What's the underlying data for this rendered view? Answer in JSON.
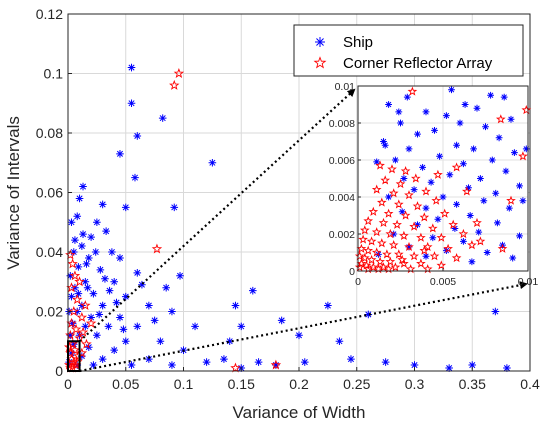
{
  "chart_data": {
    "type": "scatter",
    "title": "",
    "xlabel": "Variance of Width",
    "ylabel": "Variance of Intervals",
    "xlim": [
      0,
      0.4
    ],
    "ylim": [
      0,
      0.12
    ],
    "x_ticks": [
      "0",
      "0.05",
      "0.1",
      "0.15",
      "0.2",
      "0.25",
      "0.3",
      "0.35",
      "0.4"
    ],
    "y_ticks": [
      "0",
      "0.02",
      "0.04",
      "0.06",
      "0.08",
      "0.1",
      "0.12"
    ],
    "grid": true,
    "legend": "top-right",
    "series": [
      {
        "name": "Ship",
        "marker": "asterisk",
        "color": "#0000ff",
        "points": [
          [
            0.055,
            0.102
          ],
          [
            0.055,
            0.09
          ],
          [
            0.06,
            0.079
          ],
          [
            0.058,
            0.065
          ],
          [
            0.082,
            0.085
          ],
          [
            0.045,
            0.073
          ],
          [
            0.125,
            0.07
          ],
          [
            0.013,
            0.062
          ],
          [
            0.092,
            0.055
          ],
          [
            0.05,
            0.055
          ],
          [
            0.01,
            0.058
          ],
          [
            0.03,
            0.056
          ],
          [
            0.008,
            0.052
          ],
          [
            0.025,
            0.05
          ],
          [
            0.003,
            0.05
          ],
          [
            0.02,
            0.045
          ],
          [
            0.033,
            0.047
          ],
          [
            0.012,
            0.042
          ],
          [
            0.038,
            0.04
          ],
          [
            0.005,
            0.04
          ],
          [
            0.018,
            0.038
          ],
          [
            0.045,
            0.038
          ],
          [
            0.009,
            0.035
          ],
          [
            0.028,
            0.034
          ],
          [
            0.06,
            0.033
          ],
          [
            0.002,
            0.032
          ],
          [
            0.015,
            0.03
          ],
          [
            0.04,
            0.03
          ],
          [
            0.006,
            0.028
          ],
          [
            0.022,
            0.026
          ],
          [
            0.05,
            0.025
          ],
          [
            0.003,
            0.025
          ],
          [
            0.012,
            0.022
          ],
          [
            0.03,
            0.022
          ],
          [
            0.07,
            0.022
          ],
          [
            0.001,
            0.02
          ],
          [
            0.008,
            0.02
          ],
          [
            0.02,
            0.018
          ],
          [
            0.045,
            0.018
          ],
          [
            0.09,
            0.02
          ],
          [
            0.004,
            0.016
          ],
          [
            0.015,
            0.015
          ],
          [
            0.035,
            0.015
          ],
          [
            0.06,
            0.015
          ],
          [
            0.11,
            0.015
          ],
          [
            0.002,
            0.012
          ],
          [
            0.01,
            0.012
          ],
          [
            0.025,
            0.012
          ],
          [
            0.05,
            0.01
          ],
          [
            0.08,
            0.01
          ],
          [
            0.005,
            0.009
          ],
          [
            0.018,
            0.008
          ],
          [
            0.04,
            0.007
          ],
          [
            0.1,
            0.007
          ],
          [
            0.14,
            0.01
          ],
          [
            0.003,
            0.006
          ],
          [
            0.012,
            0.005
          ],
          [
            0.03,
            0.004
          ],
          [
            0.07,
            0.004
          ],
          [
            0.12,
            0.003
          ],
          [
            0.001,
            0.003
          ],
          [
            0.008,
            0.002
          ],
          [
            0.022,
            0.002
          ],
          [
            0.055,
            0.002
          ],
          [
            0.09,
            0.002
          ],
          [
            0.013,
            0.046
          ],
          [
            0.017,
            0.028
          ],
          [
            0.027,
            0.019
          ],
          [
            0.036,
            0.027
          ],
          [
            0.042,
            0.023
          ],
          [
            0.064,
            0.029
          ],
          [
            0.075,
            0.017
          ],
          [
            0.085,
            0.028
          ],
          [
            0.097,
            0.032
          ],
          [
            0.009,
            0.026
          ],
          [
            0.006,
            0.044
          ],
          [
            0.016,
            0.036
          ],
          [
            0.024,
            0.04
          ],
          [
            0.032,
            0.031
          ],
          [
            0.048,
            0.014
          ],
          [
            0.145,
            0.022
          ],
          [
            0.16,
            0.027
          ],
          [
            0.15,
            0.015
          ],
          [
            0.185,
            0.017
          ],
          [
            0.2,
            0.012
          ],
          [
            0.135,
            0.004
          ],
          [
            0.165,
            0.003
          ],
          [
            0.18,
            0.002
          ],
          [
            0.205,
            0.003
          ],
          [
            0.15,
            0.001
          ],
          [
            0.225,
            0.022
          ],
          [
            0.26,
            0.019
          ],
          [
            0.245,
            0.004
          ],
          [
            0.275,
            0.003
          ],
          [
            0.3,
            0.002
          ],
          [
            0.33,
            0.001
          ],
          [
            0.35,
            0.002
          ],
          [
            0.37,
            0.02
          ],
          [
            0.38,
            0.001
          ],
          [
            0.235,
            0.01
          ]
        ]
      },
      {
        "name": "Corner Reflector Array",
        "marker": "pentagram",
        "color": "#ff0000",
        "points": [
          [
            0.096,
            0.1
          ],
          [
            0.092,
            0.096
          ],
          [
            0.002,
            0.039
          ],
          [
            0.004,
            0.036
          ],
          [
            0.006,
            0.032
          ],
          [
            0.003,
            0.028
          ],
          [
            0.077,
            0.041
          ],
          [
            0.01,
            0.03
          ],
          [
            0.008,
            0.024
          ],
          [
            0.015,
            0.022
          ],
          [
            0.005,
            0.02
          ],
          [
            0.012,
            0.018
          ],
          [
            0.003,
            0.016
          ],
          [
            0.02,
            0.016
          ],
          [
            0.007,
            0.014
          ],
          [
            0.002,
            0.012
          ],
          [
            0.01,
            0.011
          ],
          [
            0.004,
            0.009
          ],
          [
            0.006,
            0.007
          ],
          [
            0.002,
            0.006
          ],
          [
            0.009,
            0.005
          ],
          [
            0.003,
            0.004
          ],
          [
            0.005,
            0.003
          ],
          [
            0.001,
            0.002
          ],
          [
            0.007,
            0.002
          ],
          [
            0.002,
            0.001
          ],
          [
            0.004,
            0.001
          ],
          [
            0.008,
            0.003
          ],
          [
            0.012,
            0.006
          ],
          [
            0.016,
            0.009
          ],
          [
            0.18,
            0.002
          ],
          [
            0.145,
            0.001
          ],
          [
            0.013,
            0.013
          ],
          [
            0.001,
            0.008
          ]
        ]
      }
    ],
    "inset": {
      "xlim": [
        0,
        0.01
      ],
      "ylim": [
        0,
        0.01
      ],
      "x_ticks": [
        "0",
        "0.005",
        "0.01"
      ],
      "y_ticks": [
        "0",
        "0.002",
        "0.004",
        "0.006",
        "0.008",
        "0.01"
      ],
      "zoom_region": {
        "x": [
          0,
          0.01
        ],
        "y": [
          0,
          0.01
        ]
      },
      "ship_points": [
        [
          0.0055,
          0.0098
        ],
        [
          0.0078,
          0.0095
        ],
        [
          0.0086,
          0.0094
        ],
        [
          0.0029,
          0.0094
        ],
        [
          0.0063,
          0.009
        ],
        [
          0.0018,
          0.009
        ],
        [
          0.007,
          0.0088
        ],
        [
          0.004,
          0.0086
        ],
        [
          0.0052,
          0.0084
        ],
        [
          0.009,
          0.0082
        ],
        [
          0.0025,
          0.008
        ],
        [
          0.006,
          0.008
        ],
        [
          0.0075,
          0.0078
        ],
        [
          0.0045,
          0.0076
        ],
        [
          0.0035,
          0.0074
        ],
        [
          0.0083,
          0.0072
        ],
        [
          0.0015,
          0.007
        ],
        [
          0.0058,
          0.0068
        ],
        [
          0.0068,
          0.0066
        ],
        [
          0.003,
          0.0066
        ],
        [
          0.0092,
          0.0064
        ],
        [
          0.0048,
          0.0062
        ],
        [
          0.0022,
          0.006
        ],
        [
          0.0079,
          0.006
        ],
        [
          0.0062,
          0.0058
        ],
        [
          0.0038,
          0.0056
        ],
        [
          0.0087,
          0.0054
        ],
        [
          0.0054,
          0.0052
        ],
        [
          0.0072,
          0.005
        ],
        [
          0.0027,
          0.005
        ],
        [
          0.0043,
          0.0048
        ],
        [
          0.0095,
          0.0046
        ],
        [
          0.0065,
          0.0045
        ],
        [
          0.0033,
          0.0044
        ],
        [
          0.0081,
          0.0042
        ],
        [
          0.005,
          0.004
        ],
        [
          0.0018,
          0.004
        ],
        [
          0.0074,
          0.0038
        ],
        [
          0.0058,
          0.0036
        ],
        [
          0.004,
          0.0034
        ],
        [
          0.0089,
          0.0034
        ],
        [
          0.0026,
          0.0032
        ],
        [
          0.0066,
          0.003
        ],
        [
          0.0047,
          0.0028
        ],
        [
          0.0082,
          0.0026
        ],
        [
          0.0035,
          0.0025
        ],
        [
          0.0057,
          0.0023
        ],
        [
          0.0071,
          0.0021
        ],
        [
          0.0021,
          0.002
        ],
        [
          0.0095,
          0.0019
        ],
        [
          0.0044,
          0.0018
        ],
        [
          0.0062,
          0.0016
        ],
        [
          0.0085,
          0.0014
        ],
        [
          0.003,
          0.0013
        ],
        [
          0.0052,
          0.0011
        ],
        [
          0.0076,
          0.001
        ],
        [
          0.0012,
          0.0009
        ],
        [
          0.004,
          0.0008
        ],
        [
          0.0091,
          0.0007
        ],
        [
          0.0067,
          0.0005
        ],
        [
          0.0016,
          0.0068
        ],
        [
          0.0024,
          0.0086
        ],
        [
          0.0099,
          0.0066
        ],
        [
          0.0097,
          0.0038
        ],
        [
          0.0011,
          0.0059
        ]
      ],
      "reflector_points": [
        [
          0.0032,
          0.0097
        ],
        [
          0.0084,
          0.0082
        ],
        [
          0.0099,
          0.0087
        ],
        [
          0.0097,
          0.0062
        ],
        [
          0.009,
          0.0038
        ],
        [
          0.0013,
          0.0057
        ],
        [
          0.002,
          0.0055
        ],
        [
          0.0028,
          0.0054
        ],
        [
          0.0016,
          0.0049
        ],
        [
          0.0025,
          0.0047
        ],
        [
          0.0034,
          0.005
        ],
        [
          0.0011,
          0.0044
        ],
        [
          0.0021,
          0.0042
        ],
        [
          0.003,
          0.0041
        ],
        [
          0.004,
          0.0043
        ],
        [
          0.0014,
          0.0037
        ],
        [
          0.0024,
          0.0036
        ],
        [
          0.0035,
          0.0035
        ],
        [
          0.0046,
          0.0038
        ],
        [
          0.0009,
          0.0032
        ],
        [
          0.0018,
          0.0031
        ],
        [
          0.0028,
          0.003
        ],
        [
          0.0039,
          0.0029
        ],
        [
          0.0051,
          0.0031
        ],
        [
          0.0006,
          0.0027
        ],
        [
          0.0015,
          0.0026
        ],
        [
          0.0023,
          0.0025
        ],
        [
          0.0033,
          0.0024
        ],
        [
          0.0044,
          0.0023
        ],
        [
          0.0056,
          0.0025
        ],
        [
          0.0004,
          0.0022
        ],
        [
          0.0011,
          0.0021
        ],
        [
          0.0019,
          0.002
        ],
        [
          0.0027,
          0.0019
        ],
        [
          0.0037,
          0.0018
        ],
        [
          0.0049,
          0.0018
        ],
        [
          0.0062,
          0.002
        ],
        [
          0.0003,
          0.0017
        ],
        [
          0.0008,
          0.0016
        ],
        [
          0.0014,
          0.0015
        ],
        [
          0.0021,
          0.0014
        ],
        [
          0.003,
          0.0013
        ],
        [
          0.0041,
          0.0013
        ],
        [
          0.0053,
          0.0012
        ],
        [
          0.0067,
          0.0014
        ],
        [
          0.0002,
          0.0012
        ],
        [
          0.0006,
          0.0011
        ],
        [
          0.0011,
          0.001
        ],
        [
          0.0017,
          0.0009
        ],
        [
          0.0024,
          0.0009
        ],
        [
          0.0033,
          0.0008
        ],
        [
          0.0045,
          0.0008
        ],
        [
          0.0058,
          0.0007
        ],
        [
          0.0001,
          0.0008
        ],
        [
          0.0004,
          0.0007
        ],
        [
          0.0008,
          0.0006
        ],
        [
          0.0013,
          0.0005
        ],
        [
          0.0019,
          0.0005
        ],
        [
          0.0027,
          0.0004
        ],
        [
          0.0037,
          0.0004
        ],
        [
          0.0049,
          0.0003
        ],
        [
          0.0002,
          0.0004
        ],
        [
          0.0005,
          0.0003
        ],
        [
          0.0009,
          0.0002
        ],
        [
          0.0015,
          0.0002
        ],
        [
          0.0022,
          0.0002
        ],
        [
          0.0031,
          0.0001
        ],
        [
          0.0041,
          0.0001
        ],
        [
          0.0001,
          0.0002
        ],
        [
          0.0006,
          0.0001
        ],
        [
          0.0012,
          0.0001
        ],
        [
          0.0018,
          0.0001
        ],
        [
          0.0026,
          0.0006
        ],
        [
          0.0039,
          0.0011
        ],
        [
          0.0072,
          0.0016
        ],
        [
          0.0085,
          0.0012
        ],
        [
          0.0064,
          0.0043
        ],
        [
          0.0058,
          0.0056
        ],
        [
          0.0047,
          0.0052
        ],
        [
          0.007,
          0.0026
        ]
      ]
    }
  }
}
